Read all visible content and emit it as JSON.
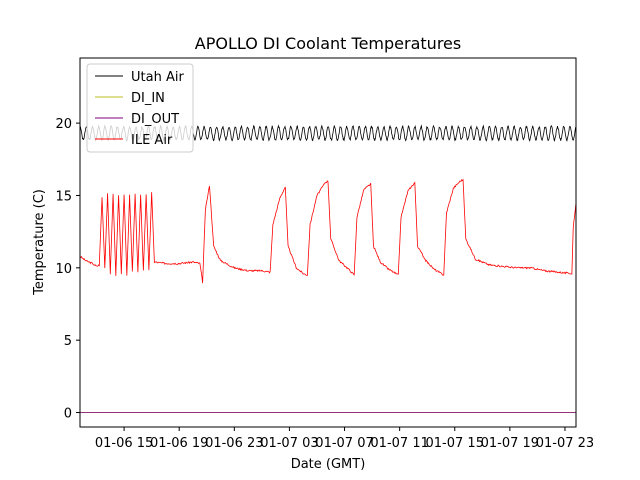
{
  "chart_data": {
    "type": "line",
    "title": "APOLLO DI Coolant Temperatures",
    "xlabel": "Date (GMT)",
    "ylabel": "Temperature (C)",
    "x_tick_labels": [
      "01-06 15",
      "01-06 19",
      "01-06 23",
      "01-07 03",
      "01-07 07",
      "01-07 11",
      "01-07 15",
      "01-07 19",
      "01-07 23"
    ],
    "x_ticks_hours": [
      15,
      19,
      23,
      27,
      31,
      35,
      39,
      43,
      47
    ],
    "xlim_hours": [
      11.8,
      47.8
    ],
    "ylim": [
      -1,
      24.5
    ],
    "y_ticks": [
      0,
      5,
      10,
      15,
      20
    ],
    "legend_position": "upper-left",
    "grid": false,
    "series": [
      {
        "name": "Utah Air",
        "color": "#000000",
        "baseline": 19.3,
        "oscillation_amplitude": 0.45,
        "oscillation_period_hours": 0.45
      },
      {
        "name": "DI_IN",
        "color": "#bcbd22",
        "constant": 0
      },
      {
        "name": "DI_OUT",
        "color": "#800080",
        "constant": 0
      },
      {
        "name": "ILE Air",
        "color": "#ff0000",
        "baseline": 10.2,
        "points": [
          [
            11.8,
            10.8
          ],
          [
            12.2,
            10.5
          ],
          [
            12.7,
            10.3
          ],
          [
            13.0,
            10.1
          ],
          [
            13.2,
            10.2
          ],
          [
            13.4,
            14.9
          ],
          [
            13.6,
            10.0
          ],
          [
            13.8,
            15.1
          ],
          [
            14.0,
            9.6
          ],
          [
            14.2,
            15.1
          ],
          [
            14.4,
            9.5
          ],
          [
            14.6,
            15.0
          ],
          [
            14.8,
            9.6
          ],
          [
            15.0,
            15.1
          ],
          [
            15.2,
            9.5
          ],
          [
            15.4,
            15.0
          ],
          [
            15.6,
            9.7
          ],
          [
            15.8,
            15.1
          ],
          [
            16.0,
            9.7
          ],
          [
            16.2,
            15.0
          ],
          [
            16.4,
            9.8
          ],
          [
            16.6,
            15.1
          ],
          [
            16.8,
            9.8
          ],
          [
            17.0,
            15.2
          ],
          [
            17.2,
            10.4
          ],
          [
            18.0,
            10.3
          ],
          [
            19.0,
            10.3
          ],
          [
            20.0,
            10.4
          ],
          [
            20.5,
            10.3
          ],
          [
            20.7,
            9.0
          ],
          [
            20.9,
            14.0
          ],
          [
            21.2,
            15.7
          ],
          [
            21.5,
            11.5
          ],
          [
            22.0,
            10.5
          ],
          [
            23.0,
            10.0
          ],
          [
            24.0,
            9.8
          ],
          [
            25.0,
            9.8
          ],
          [
            25.6,
            9.7
          ],
          [
            25.8,
            13.0
          ],
          [
            26.3,
            14.8
          ],
          [
            26.7,
            15.6
          ],
          [
            26.9,
            11.5
          ],
          [
            27.5,
            10.0
          ],
          [
            28.0,
            9.6
          ],
          [
            28.3,
            9.5
          ],
          [
            28.5,
            13.0
          ],
          [
            29.0,
            15.0
          ],
          [
            29.6,
            15.9
          ],
          [
            29.8,
            16.0
          ],
          [
            30.0,
            12.0
          ],
          [
            30.6,
            10.5
          ],
          [
            31.3,
            9.9
          ],
          [
            31.7,
            9.5
          ],
          [
            31.9,
            13.5
          ],
          [
            32.4,
            15.4
          ],
          [
            32.9,
            15.8
          ],
          [
            33.1,
            11.5
          ],
          [
            33.6,
            10.4
          ],
          [
            34.2,
            9.9
          ],
          [
            34.9,
            9.5
          ],
          [
            35.1,
            13.5
          ],
          [
            35.6,
            15.3
          ],
          [
            36.1,
            15.9
          ],
          [
            36.3,
            11.5
          ],
          [
            36.9,
            10.5
          ],
          [
            37.5,
            9.9
          ],
          [
            38.2,
            9.5
          ],
          [
            38.4,
            13.8
          ],
          [
            38.9,
            15.5
          ],
          [
            39.4,
            16.0
          ],
          [
            39.6,
            16.1
          ],
          [
            39.8,
            12.0
          ],
          [
            40.5,
            10.6
          ],
          [
            41.5,
            10.2
          ],
          [
            42.5,
            10.1
          ],
          [
            43.5,
            10.0
          ],
          [
            44.5,
            10.0
          ],
          [
            45.5,
            9.8
          ],
          [
            47.5,
            9.6
          ],
          [
            47.6,
            12.8
          ],
          [
            47.8,
            14.5
          ]
        ]
      }
    ]
  }
}
